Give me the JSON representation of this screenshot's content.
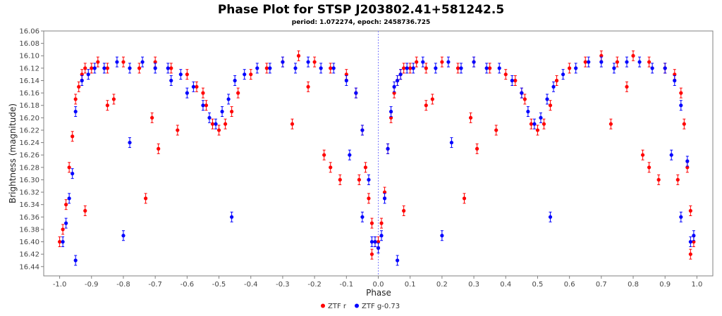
{
  "colors": {
    "ztf_r": "#ff0000",
    "ztf_g": "#0000ff",
    "zero_line": "#8080ff",
    "grid": "#d0d0d0",
    "frame": "#808080"
  },
  "chart_data": {
    "type": "scatter",
    "title": "Phase Plot for STSP J203802.41+581242.5",
    "subtitle": "period: 1.072274, epoch: 2458736.725",
    "xlabel": "Phase",
    "ylabel": "Brightness (magnitude)",
    "xlim": [
      -1.05,
      1.05
    ],
    "ylim": [
      16.06,
      16.455
    ],
    "y_inverted": true,
    "grid": false,
    "legend_position": "bottom-center",
    "x_ticks": [
      "-1.0",
      "-0.9",
      "-0.8",
      "-0.7",
      "-0.6",
      "-0.5",
      "-0.4",
      "-0.3",
      "-0.2",
      "-0.1",
      "0.0",
      "0.1",
      "0.2",
      "0.3",
      "0.4",
      "0.5",
      "0.6",
      "0.7",
      "0.8",
      "0.9",
      "1.0"
    ],
    "y_ticks": [
      "16.06",
      "16.08",
      "16.10",
      "16.12",
      "16.14",
      "16.16",
      "16.18",
      "16.20",
      "16.22",
      "16.24",
      "16.26",
      "16.28",
      "16.30",
      "16.32",
      "16.34",
      "16.36",
      "16.38",
      "16.40",
      "16.42",
      "16.44"
    ],
    "series": [
      {
        "name": "ZTF r",
        "color": "#ff0000",
        "x": [
          0.0,
          0.01,
          0.02,
          0.03,
          0.04,
          0.05,
          0.06,
          0.07,
          0.08,
          0.1,
          0.12,
          0.15,
          0.2,
          0.25,
          0.3,
          0.35,
          0.4,
          0.43,
          0.46,
          0.48,
          0.5,
          0.52,
          0.54,
          0.56,
          0.6,
          0.65,
          0.7,
          0.75,
          0.8,
          0.85,
          0.9,
          0.93,
          0.95,
          0.96,
          0.97,
          0.98,
          0.99,
          0.08,
          0.27,
          0.31,
          0.29,
          0.37,
          0.83,
          0.85,
          0.88,
          0.94,
          0.73,
          0.78,
          0.15,
          0.17,
          0.45,
          0.98,
          -1.0,
          -0.99,
          -0.98,
          -0.97,
          -0.96,
          -0.95,
          -0.94,
          -0.93,
          -0.92,
          -0.9,
          -0.88,
          -0.85,
          -0.8,
          -0.75,
          -0.7,
          -0.65,
          -0.6,
          -0.57,
          -0.54,
          -0.52,
          -0.5,
          -0.48,
          -0.46,
          -0.44,
          -0.4,
          -0.35,
          -0.3,
          -0.25,
          -0.2,
          -0.15,
          -0.1,
          -0.07,
          -0.05,
          -0.04,
          -0.03,
          -0.02,
          -0.01,
          -0.92,
          -0.73,
          -0.69,
          -0.71,
          -0.63,
          -0.17,
          -0.15,
          -0.12,
          -0.06,
          -0.27,
          -0.22,
          -0.85,
          -0.83,
          -0.55,
          -0.02
        ],
        "y": [
          16.4,
          16.37,
          16.32,
          16.25,
          16.2,
          16.16,
          16.14,
          16.13,
          16.12,
          16.12,
          16.11,
          16.12,
          16.11,
          16.12,
          16.11,
          16.12,
          16.13,
          16.14,
          16.17,
          16.21,
          16.22,
          16.21,
          16.18,
          16.14,
          16.12,
          16.11,
          16.1,
          16.11,
          16.1,
          16.11,
          16.12,
          16.13,
          16.16,
          16.21,
          16.28,
          16.35,
          16.4,
          16.35,
          16.33,
          16.25,
          16.2,
          16.22,
          16.26,
          16.28,
          16.3,
          16.3,
          16.21,
          16.15,
          16.18,
          16.17,
          16.16,
          16.42,
          16.4,
          16.38,
          16.34,
          16.28,
          16.23,
          16.17,
          16.15,
          16.13,
          16.12,
          16.12,
          16.11,
          16.12,
          16.11,
          16.12,
          16.11,
          16.12,
          16.13,
          16.15,
          16.18,
          16.21,
          16.22,
          16.21,
          16.19,
          16.16,
          16.13,
          16.12,
          16.11,
          16.1,
          16.11,
          16.12,
          16.13,
          16.16,
          16.22,
          16.28,
          16.33,
          16.37,
          16.4,
          16.35,
          16.33,
          16.25,
          16.2,
          16.22,
          16.26,
          16.28,
          16.3,
          16.3,
          16.21,
          16.15,
          16.18,
          16.17,
          16.16,
          16.42
        ]
      },
      {
        "name": "ZTF g-0.73",
        "color": "#0000ff",
        "x": [
          0.0,
          0.01,
          0.02,
          0.03,
          0.04,
          0.05,
          0.06,
          0.07,
          0.09,
          0.11,
          0.14,
          0.18,
          0.22,
          0.26,
          0.3,
          0.34,
          0.38,
          0.42,
          0.45,
          0.47,
          0.49,
          0.51,
          0.53,
          0.55,
          0.58,
          0.62,
          0.66,
          0.7,
          0.74,
          0.78,
          0.82,
          0.86,
          0.9,
          0.93,
          0.95,
          0.97,
          0.99,
          0.06,
          0.2,
          0.23,
          0.54,
          0.92,
          0.95,
          0.98,
          -0.99,
          -0.98,
          -0.97,
          -0.96,
          -0.95,
          -0.93,
          -0.91,
          -0.89,
          -0.86,
          -0.82,
          -0.78,
          -0.74,
          -0.7,
          -0.66,
          -0.62,
          -0.58,
          -0.55,
          -0.53,
          -0.51,
          -0.49,
          -0.47,
          -0.45,
          -0.42,
          -0.38,
          -0.34,
          -0.3,
          -0.26,
          -0.22,
          -0.18,
          -0.14,
          -0.1,
          -0.07,
          -0.05,
          -0.03,
          -0.01,
          -0.95,
          -0.8,
          -0.78,
          -0.46,
          -0.09,
          -0.05,
          -0.02,
          -0.6,
          -0.65
        ],
        "y": [
          16.41,
          16.39,
          16.33,
          16.25,
          16.19,
          16.15,
          16.14,
          16.13,
          16.12,
          16.12,
          16.11,
          16.12,
          16.11,
          16.12,
          16.11,
          16.12,
          16.12,
          16.14,
          16.16,
          16.19,
          16.21,
          16.2,
          16.17,
          16.15,
          16.13,
          16.12,
          16.11,
          16.11,
          16.12,
          16.11,
          16.11,
          16.12,
          16.12,
          16.14,
          16.18,
          16.27,
          16.39,
          16.43,
          16.39,
          16.24,
          16.36,
          16.26,
          16.36,
          16.4,
          16.4,
          16.37,
          16.33,
          16.29,
          16.19,
          16.14,
          16.13,
          16.12,
          16.12,
          16.11,
          16.12,
          16.11,
          16.12,
          16.12,
          16.13,
          16.15,
          16.18,
          16.2,
          16.21,
          16.19,
          16.17,
          16.14,
          16.13,
          16.12,
          16.12,
          16.11,
          16.12,
          16.11,
          16.12,
          16.12,
          16.14,
          16.16,
          16.22,
          16.3,
          16.4,
          16.43,
          16.39,
          16.24,
          16.36,
          16.26,
          16.36,
          16.4,
          16.16,
          16.14
        ]
      }
    ]
  }
}
